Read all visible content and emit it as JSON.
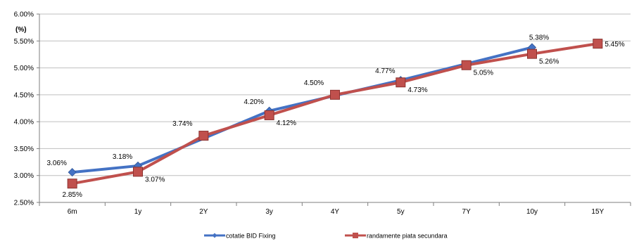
{
  "chart_data": {
    "type": "line",
    "ylabel": "(%)",
    "categories": [
      "6m",
      "1y",
      "2Y",
      "3y",
      "4Y",
      "5y",
      "7Y",
      "10y",
      "15Y"
    ],
    "y_ticks": [
      "2.50%",
      "3.00%",
      "3.50%",
      "4.00%",
      "4.50%",
      "5.00%",
      "5.50%",
      "6.00%"
    ],
    "ylim": [
      2.5,
      6.0
    ],
    "grid": "horizontal",
    "legend": "bottom-center",
    "series": [
      {
        "name": "cotatie BID Fixing",
        "color": "#4472C4",
        "marker": "diamond",
        "values": [
          3.06,
          3.18,
          null,
          4.2,
          null,
          4.77,
          null,
          5.38,
          null
        ],
        "labels": [
          "3.06%",
          "3.18%",
          null,
          "4.20%",
          null,
          "4.77%",
          null,
          "5.38%",
          null
        ]
      },
      {
        "name": "randamente piata secundara",
        "color": "#C0504D",
        "marker": "square",
        "values": [
          2.85,
          3.07,
          3.74,
          4.12,
          4.5,
          4.73,
          5.05,
          5.26,
          5.45
        ],
        "labels": [
          "2.85%",
          "3.07%",
          "3.74%",
          "4.12%",
          "4.50%",
          "4.73%",
          "5.05%",
          "5.26%",
          "5.45%"
        ]
      }
    ]
  }
}
